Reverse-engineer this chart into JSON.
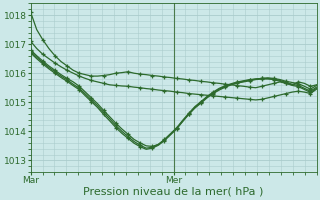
{
  "xlabel": "Pression niveau de la mer( hPa )",
  "bg_color": "#cce8e8",
  "grid_color": "#aacccc",
  "line_color": "#2d6a2d",
  "vline_color": "#4a7a4a",
  "yticks": [
    1013,
    1014,
    1015,
    1016,
    1017,
    1018
  ],
  "ylim": [
    1012.6,
    1018.4
  ],
  "xlim": [
    0,
    48
  ],
  "xtick_positions": [
    0,
    24
  ],
  "xtick_labels": [
    "Mar",
    "Mer"
  ],
  "series": [
    [
      1018.1,
      1017.5,
      1017.15,
      1016.85,
      1016.6,
      1016.4,
      1016.25,
      1016.1,
      1016.0,
      1015.95,
      1015.9,
      1015.9,
      1015.92,
      1015.95,
      1016.0,
      1016.02,
      1016.05,
      1016.0,
      1015.97,
      1015.95,
      1015.92,
      1015.9,
      1015.87,
      1015.85,
      1015.82,
      1015.8,
      1015.77,
      1015.75,
      1015.72,
      1015.7,
      1015.67,
      1015.65,
      1015.62,
      1015.6,
      1015.57,
      1015.55,
      1015.52,
      1015.5,
      1015.55,
      1015.6,
      1015.65,
      1015.7,
      1015.65,
      1015.6,
      1015.7,
      1015.65,
      1015.55,
      1015.6
    ],
    [
      1017.1,
      1016.85,
      1016.65,
      1016.5,
      1016.35,
      1016.22,
      1016.1,
      1016.0,
      1015.9,
      1015.82,
      1015.75,
      1015.7,
      1015.65,
      1015.6,
      1015.58,
      1015.56,
      1015.55,
      1015.52,
      1015.5,
      1015.47,
      1015.45,
      1015.42,
      1015.4,
      1015.38,
      1015.35,
      1015.33,
      1015.3,
      1015.28,
      1015.26,
      1015.24,
      1015.22,
      1015.2,
      1015.18,
      1015.16,
      1015.14,
      1015.12,
      1015.1,
      1015.08,
      1015.1,
      1015.15,
      1015.2,
      1015.25,
      1015.3,
      1015.35,
      1015.38,
      1015.35,
      1015.3,
      1015.45
    ],
    [
      1016.8,
      1016.6,
      1016.42,
      1016.25,
      1016.1,
      1015.95,
      1015.82,
      1015.7,
      1015.55,
      1015.35,
      1015.15,
      1014.95,
      1014.72,
      1014.5,
      1014.28,
      1014.08,
      1013.9,
      1013.72,
      1013.6,
      1013.5,
      1013.48,
      1013.55,
      1013.7,
      1013.9,
      1014.1,
      1014.35,
      1014.6,
      1014.82,
      1015.0,
      1015.18,
      1015.32,
      1015.45,
      1015.55,
      1015.62,
      1015.68,
      1015.72,
      1015.76,
      1015.8,
      1015.82,
      1015.84,
      1015.82,
      1015.78,
      1015.72,
      1015.68,
      1015.64,
      1015.55,
      1015.45,
      1015.58
    ],
    [
      1016.75,
      1016.55,
      1016.37,
      1016.2,
      1016.05,
      1015.9,
      1015.77,
      1015.62,
      1015.48,
      1015.28,
      1015.08,
      1014.88,
      1014.65,
      1014.43,
      1014.2,
      1014.0,
      1013.82,
      1013.65,
      1013.52,
      1013.42,
      1013.45,
      1013.55,
      1013.72,
      1013.92,
      1014.12,
      1014.38,
      1014.62,
      1014.85,
      1015.02,
      1015.2,
      1015.35,
      1015.48,
      1015.57,
      1015.64,
      1015.7,
      1015.74,
      1015.78,
      1015.8,
      1015.82,
      1015.82,
      1015.8,
      1015.75,
      1015.68,
      1015.62,
      1015.58,
      1015.48,
      1015.38,
      1015.52
    ],
    [
      1016.7,
      1016.5,
      1016.32,
      1016.15,
      1016.0,
      1015.85,
      1015.72,
      1015.57,
      1015.43,
      1015.22,
      1015.02,
      1014.82,
      1014.58,
      1014.36,
      1014.13,
      1013.93,
      1013.76,
      1013.59,
      1013.47,
      1013.38,
      1013.42,
      1013.52,
      1013.68,
      1013.88,
      1014.08,
      1014.34,
      1014.58,
      1014.8,
      1014.97,
      1015.15,
      1015.3,
      1015.42,
      1015.52,
      1015.6,
      1015.66,
      1015.7,
      1015.74,
      1015.78,
      1015.8,
      1015.8,
      1015.78,
      1015.72,
      1015.65,
      1015.58,
      1015.54,
      1015.44,
      1015.34,
      1015.48
    ]
  ],
  "tick_font_size": 6.5,
  "xlabel_font_size": 8,
  "line_width": 0.9,
  "marker_size": 3.5,
  "marker_every": 2,
  "vline_x": 24
}
